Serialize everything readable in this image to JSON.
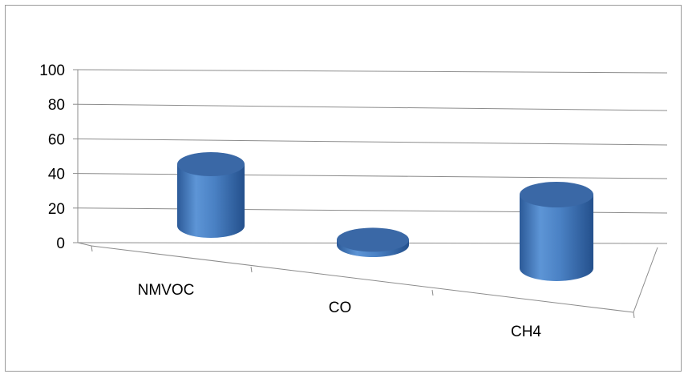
{
  "chart_data": {
    "type": "bar",
    "subtype": "3d-cylinder",
    "categories": [
      "NMVOC",
      "CO",
      "CH4"
    ],
    "values": [
      35,
      3,
      40
    ],
    "ylim": [
      0,
      100
    ],
    "yticks": [
      "0",
      "20",
      "40",
      "60",
      "80",
      "100"
    ],
    "grid": true,
    "legend": "none",
    "colors": {
      "bar": "#4a7fc1",
      "bar_top": "#3a68a6",
      "bar_dark": "#2b5592",
      "grid": "#8c8c8c"
    }
  }
}
